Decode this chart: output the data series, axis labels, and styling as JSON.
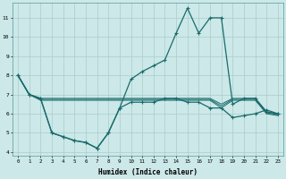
{
  "xlabel": "Humidex (Indice chaleur)",
  "background_color": "#cce8e8",
  "grid_color": "#aacccc",
  "line_color": "#1a6b6b",
  "xlim": [
    -0.5,
    23.5
  ],
  "ylim": [
    3.8,
    11.8
  ],
  "xticks": [
    0,
    1,
    2,
    3,
    4,
    5,
    6,
    7,
    8,
    9,
    10,
    11,
    12,
    13,
    14,
    15,
    16,
    17,
    18,
    19,
    20,
    21,
    22,
    23
  ],
  "yticks": [
    4,
    5,
    6,
    7,
    8,
    9,
    10,
    11
  ],
  "line_main_x": [
    0,
    1,
    2,
    3,
    4,
    5,
    6,
    7,
    8,
    9,
    10,
    11,
    12,
    13,
    14,
    15,
    16,
    17,
    18,
    19,
    20,
    21,
    22,
    23
  ],
  "line_main_y": [
    8.0,
    7.0,
    6.8,
    5.0,
    4.8,
    4.6,
    4.5,
    4.2,
    5.0,
    6.3,
    7.8,
    8.2,
    8.5,
    8.8,
    10.2,
    11.5,
    10.2,
    11.0,
    11.0,
    6.5,
    6.8,
    6.8,
    6.1,
    6.0
  ],
  "line_flat1_x": [
    0,
    1,
    2,
    3,
    4,
    5,
    6,
    7,
    8,
    9,
    10,
    11,
    12,
    13,
    14,
    15,
    16,
    17,
    18,
    19,
    20,
    21,
    22,
    23
  ],
  "line_flat1_y": [
    8.0,
    7.0,
    6.8,
    6.8,
    6.8,
    6.8,
    6.8,
    6.8,
    6.8,
    6.8,
    6.8,
    6.8,
    6.8,
    6.8,
    6.8,
    6.8,
    6.8,
    6.8,
    6.5,
    6.8,
    6.8,
    6.8,
    6.1,
    6.0
  ],
  "line_flat2_x": [
    0,
    1,
    2,
    3,
    4,
    5,
    6,
    7,
    8,
    9,
    10,
    11,
    12,
    13,
    14,
    15,
    16,
    17,
    18,
    19,
    20,
    21,
    22,
    23
  ],
  "line_flat2_y": [
    8.0,
    7.0,
    6.75,
    6.75,
    6.75,
    6.75,
    6.75,
    6.75,
    6.75,
    6.75,
    6.75,
    6.75,
    6.75,
    6.75,
    6.75,
    6.75,
    6.75,
    6.75,
    6.4,
    6.75,
    6.75,
    6.75,
    6.05,
    5.95
  ],
  "line_flat3_x": [
    0,
    1,
    2,
    3,
    4,
    5,
    6,
    7,
    8,
    9,
    10,
    11,
    12,
    13,
    14,
    15,
    16,
    17,
    18,
    19,
    20,
    21,
    22,
    23
  ],
  "line_flat3_y": [
    8.0,
    7.0,
    6.7,
    6.7,
    6.7,
    6.7,
    6.7,
    6.7,
    6.7,
    6.7,
    6.7,
    6.7,
    6.7,
    6.7,
    6.7,
    6.7,
    6.7,
    6.7,
    6.3,
    6.7,
    6.7,
    6.7,
    6.0,
    5.9
  ],
  "line_bot_x": [
    0,
    1,
    2,
    3,
    4,
    5,
    6,
    7,
    8,
    9,
    10,
    11,
    12,
    13,
    14,
    15,
    16,
    17,
    18,
    19,
    20,
    21,
    22,
    23
  ],
  "line_bot_y": [
    8.0,
    7.0,
    6.8,
    5.0,
    4.8,
    4.6,
    4.5,
    4.2,
    5.0,
    6.3,
    6.6,
    6.6,
    6.6,
    6.8,
    6.8,
    6.6,
    6.6,
    6.3,
    6.3,
    5.8,
    5.9,
    6.0,
    6.2,
    6.0
  ]
}
